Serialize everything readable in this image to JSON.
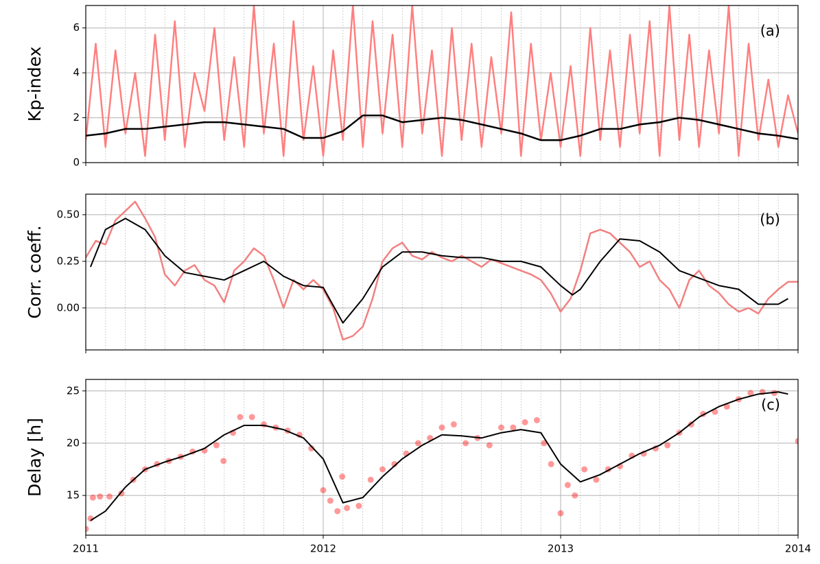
{
  "chart_data": [
    {
      "type": "line",
      "ylabel": "Kp-index",
      "annotation": "(a)",
      "xlim": [
        2011,
        2014
      ],
      "xticks": [
        2011,
        2012,
        2013,
        2014
      ],
      "ylim": [
        0,
        7
      ],
      "yticks": [
        0,
        2,
        4,
        6
      ],
      "grid": true,
      "minor_grid": "monthly",
      "series": [
        {
          "color": "#ff7f7f",
          "width": 2.5,
          "x": [
            2011,
            2011.042,
            2011.083,
            2011.125,
            2011.167,
            2011.208,
            2011.25,
            2011.292,
            2011.333,
            2011.375,
            2011.417,
            2011.458,
            2011.5,
            2011.542,
            2011.583,
            2011.625,
            2011.667,
            2011.708,
            2011.75,
            2011.792,
            2011.833,
            2011.875,
            2011.917,
            2011.958,
            2012,
            2012.042,
            2012.083,
            2012.125,
            2012.167,
            2012.208,
            2012.25,
            2012.292,
            2012.333,
            2012.375,
            2012.417,
            2012.458,
            2012.5,
            2012.542,
            2012.583,
            2012.625,
            2012.667,
            2012.708,
            2012.75,
            2012.792,
            2012.833,
            2012.875,
            2012.917,
            2012.958,
            2013,
            2013.042,
            2013.083,
            2013.125,
            2013.167,
            2013.208,
            2013.25,
            2013.292,
            2013.333,
            2013.375,
            2013.417,
            2013.458,
            2013.5,
            2013.542,
            2013.583,
            2013.625,
            2013.667,
            2013.708,
            2013.75,
            2013.792,
            2013.833,
            2013.875,
            2013.917,
            2013.958,
            2014
          ],
          "values": [
            1,
            5.3,
            0.7,
            5,
            1.3,
            4,
            0.3,
            5.7,
            1,
            6.3,
            0.7,
            4,
            2.3,
            6,
            1,
            4.7,
            0.7,
            7,
            1.3,
            5.3,
            0.3,
            6.3,
            1,
            4.3,
            0.3,
            5,
            1,
            7,
            0.7,
            6.3,
            1.3,
            5.7,
            0.7,
            7,
            1.3,
            5,
            0.3,
            6,
            1,
            5.3,
            0.7,
            4.7,
            1.3,
            6.7,
            0.3,
            5.3,
            1,
            4,
            0.7,
            4.3,
            0.3,
            6,
            1,
            5,
            0.7,
            5.7,
            1.3,
            6.3,
            0.3,
            7,
            1,
            5.7,
            0.7,
            5,
            1.3,
            7,
            0.3,
            5.3,
            1,
            3.7,
            0.7,
            3,
            1.3
          ]
        },
        {
          "color": "#000000",
          "width": 2.5,
          "x": [
            2011,
            2011.083,
            2011.167,
            2011.25,
            2011.333,
            2011.417,
            2011.5,
            2011.583,
            2011.667,
            2011.75,
            2011.833,
            2011.917,
            2012,
            2012.083,
            2012.167,
            2012.25,
            2012.333,
            2012.417,
            2012.5,
            2012.583,
            2012.667,
            2012.75,
            2012.833,
            2012.917,
            2013,
            2013.083,
            2013.167,
            2013.25,
            2013.333,
            2013.417,
            2013.5,
            2013.583,
            2013.667,
            2013.75,
            2013.833,
            2013.917,
            2014
          ],
          "values": [
            1.2,
            1.3,
            1.5,
            1.5,
            1.6,
            1.7,
            1.8,
            1.8,
            1.7,
            1.6,
            1.5,
            1.1,
            1.1,
            1.4,
            2.1,
            2.1,
            1.8,
            1.9,
            2.0,
            1.9,
            1.7,
            1.5,
            1.3,
            1.0,
            1.0,
            1.2,
            1.5,
            1.5,
            1.7,
            1.8,
            2.0,
            1.9,
            1.7,
            1.5,
            1.3,
            1.2,
            1.05
          ]
        }
      ]
    },
    {
      "type": "line",
      "ylabel": "Corr. coeff.",
      "annotation": "(b)",
      "xlim": [
        2011,
        2014
      ],
      "xticks": [
        2011,
        2012,
        2013,
        2014
      ],
      "ylim": [
        -0.225,
        0.61
      ],
      "yticks": [
        {
          "value": 0,
          "label": "0.00"
        },
        0.25,
        {
          "value": 0.5,
          "label": "0.50"
        }
      ],
      "grid": true,
      "minor_grid": "monthly",
      "series": [
        {
          "color": "#f28080",
          "width": 2.5,
          "x": [
            2011,
            2011.042,
            2011.083,
            2011.125,
            2011.167,
            2011.208,
            2011.25,
            2011.292,
            2011.333,
            2011.375,
            2011.417,
            2011.458,
            2011.5,
            2011.542,
            2011.583,
            2011.625,
            2011.667,
            2011.708,
            2011.75,
            2011.792,
            2011.833,
            2011.875,
            2011.917,
            2011.958,
            2012,
            2012.042,
            2012.083,
            2012.125,
            2012.167,
            2012.208,
            2012.25,
            2012.292,
            2012.333,
            2012.375,
            2012.417,
            2012.458,
            2012.5,
            2012.542,
            2012.583,
            2012.625,
            2012.667,
            2012.708,
            2012.75,
            2012.792,
            2012.833,
            2012.875,
            2012.917,
            2012.958,
            2013,
            2013.042,
            2013.083,
            2013.125,
            2013.167,
            2013.208,
            2013.25,
            2013.292,
            2013.333,
            2013.375,
            2013.417,
            2013.458,
            2013.5,
            2013.542,
            2013.583,
            2013.625,
            2013.667,
            2013.708,
            2013.75,
            2013.792,
            2013.833,
            2013.875,
            2013.917,
            2013.958,
            2014
          ],
          "values": [
            0.27,
            0.36,
            0.34,
            0.47,
            0.52,
            0.57,
            0.48,
            0.38,
            0.18,
            0.12,
            0.2,
            0.23,
            0.15,
            0.12,
            0.03,
            0.2,
            0.25,
            0.32,
            0.28,
            0.15,
            0.0,
            0.15,
            0.1,
            0.15,
            0.1,
            0.0,
            -0.17,
            -0.15,
            -0.1,
            0.05,
            0.25,
            0.32,
            0.35,
            0.28,
            0.26,
            0.3,
            0.27,
            0.25,
            0.28,
            0.25,
            0.22,
            0.26,
            0.24,
            0.22,
            0.2,
            0.18,
            0.15,
            0.08,
            -0.02,
            0.05,
            0.2,
            0.4,
            0.42,
            0.4,
            0.35,
            0.3,
            0.22,
            0.25,
            0.15,
            0.1,
            0.0,
            0.15,
            0.2,
            0.12,
            0.08,
            0.02,
            -0.02,
            0.0,
            -0.03,
            0.05,
            0.1,
            0.14,
            0.14
          ]
        },
        {
          "color": "#000000",
          "width": 2,
          "x": [
            2011.02,
            2011.083,
            2011.167,
            2011.25,
            2011.333,
            2011.417,
            2011.5,
            2011.583,
            2011.667,
            2011.75,
            2011.833,
            2011.917,
            2012,
            2012.083,
            2012.167,
            2012.25,
            2012.333,
            2012.417,
            2012.5,
            2012.583,
            2012.667,
            2012.75,
            2012.833,
            2012.917,
            2013,
            2013.05,
            2013.083,
            2013.167,
            2013.25,
            2013.333,
            2013.417,
            2013.5,
            2013.583,
            2013.667,
            2013.75,
            2013.833,
            2013.917,
            2013.958
          ],
          "values": [
            0.22,
            0.42,
            0.48,
            0.42,
            0.28,
            0.19,
            0.17,
            0.15,
            0.2,
            0.25,
            0.17,
            0.12,
            0.11,
            -0.08,
            0.05,
            0.22,
            0.3,
            0.3,
            0.28,
            0.27,
            0.27,
            0.25,
            0.25,
            0.22,
            0.12,
            0.07,
            0.1,
            0.25,
            0.37,
            0.36,
            0.3,
            0.2,
            0.16,
            0.12,
            0.1,
            0.02,
            0.02,
            0.05
          ]
        }
      ]
    },
    {
      "type": "line",
      "ylabel": "Delay [h]",
      "annotation": "(c)",
      "xlim": [
        2011,
        2014
      ],
      "xticks": [
        2011,
        2012,
        2013,
        2014
      ],
      "ylim": [
        11.2,
        26.1
      ],
      "yticks": [
        15,
        20,
        25
      ],
      "grid": true,
      "minor_grid": "monthly",
      "series": [
        {
          "type": "scatter",
          "color": "#ff0000",
          "opacity": 0.4,
          "x": [
            2011,
            2011.02,
            2011.03,
            2011.06,
            2011.1,
            2011.15,
            2011.2,
            2011.25,
            2011.3,
            2011.35,
            2011.4,
            2011.45,
            2011.5,
            2011.55,
            2011.58,
            2011.62,
            2011.65,
            2011.7,
            2011.75,
            2011.8,
            2011.85,
            2011.9,
            2011.95,
            2012,
            2012.03,
            2012.06,
            2012.08,
            2012.1,
            2012.15,
            2012.2,
            2012.25,
            2012.3,
            2012.35,
            2012.4,
            2012.45,
            2012.5,
            2012.55,
            2012.6,
            2012.65,
            2012.7,
            2012.75,
            2012.8,
            2012.85,
            2012.9,
            2012.93,
            2012.96,
            2013,
            2013.03,
            2013.06,
            2013.1,
            2013.15,
            2013.2,
            2013.25,
            2013.3,
            2013.35,
            2013.4,
            2013.45,
            2013.5,
            2013.55,
            2013.6,
            2013.65,
            2013.7,
            2013.75,
            2013.8,
            2013.85,
            2013.9,
            2014
          ],
          "values": [
            11.8,
            12.8,
            14.8,
            14.9,
            14.9,
            15.2,
            16.5,
            17.5,
            18,
            18.3,
            18.7,
            19.2,
            19.3,
            19.8,
            18.3,
            21,
            22.5,
            22.5,
            21.8,
            21.5,
            21.2,
            20.8,
            19.5,
            15.5,
            14.5,
            13.5,
            16.8,
            13.8,
            14,
            16.5,
            17.5,
            18,
            19,
            20,
            20.5,
            21.5,
            21.8,
            20,
            20.5,
            19.8,
            21.5,
            21.5,
            22,
            22.2,
            20,
            18,
            13.3,
            16,
            15,
            17.5,
            16.5,
            17.5,
            17.8,
            18.8,
            19,
            19.5,
            19.8,
            21,
            21.8,
            22.8,
            23,
            23.5,
            24.2,
            24.8,
            24.9,
            24.8,
            20.2
          ]
        },
        {
          "color": "#000000",
          "width": 2,
          "x": [
            2011.02,
            2011.083,
            2011.167,
            2011.25,
            2011.333,
            2011.417,
            2011.5,
            2011.583,
            2011.667,
            2011.75,
            2011.833,
            2011.917,
            2012,
            2012.083,
            2012.167,
            2012.25,
            2012.333,
            2012.417,
            2012.5,
            2012.583,
            2012.667,
            2012.75,
            2012.833,
            2012.917,
            2013,
            2013.083,
            2013.167,
            2013.25,
            2013.333,
            2013.417,
            2013.5,
            2013.583,
            2013.667,
            2013.75,
            2013.833,
            2013.917,
            2013.958
          ],
          "values": [
            12.6,
            13.5,
            15.8,
            17.5,
            18.2,
            18.8,
            19.5,
            20.8,
            21.7,
            21.7,
            21.3,
            20.5,
            18.5,
            14.3,
            14.8,
            16.8,
            18.5,
            19.8,
            20.8,
            20.7,
            20.5,
            21,
            21.3,
            21,
            18,
            16.3,
            17,
            18,
            19,
            19.8,
            21,
            22.5,
            23.5,
            24.2,
            24.7,
            24.9,
            24.7
          ]
        }
      ]
    }
  ]
}
